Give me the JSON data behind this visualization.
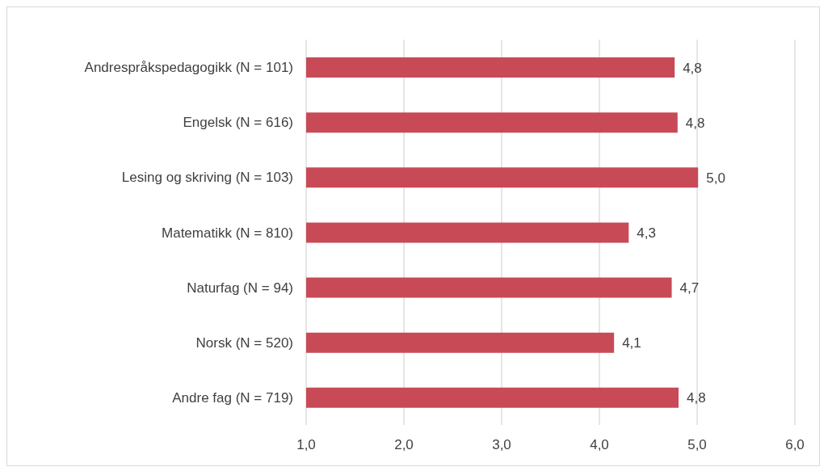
{
  "chart_data": {
    "type": "bar",
    "orientation": "horizontal",
    "categories": [
      "Andrespråkspedagogikk (N = 101)",
      "Engelsk (N = 616)",
      "Lesing og skriving (N = 103)",
      "Matematikk (N = 810)",
      "Naturfag (N = 94)",
      "Norsk (N = 520)",
      "Andre fag (N = 719)"
    ],
    "values": [
      4.77,
      4.8,
      5.01,
      4.3,
      4.74,
      4.15,
      4.81
    ],
    "value_labels": [
      "4,8",
      "4,8",
      "5,0",
      "4,3",
      "4,7",
      "4,1",
      "4,8"
    ],
    "color": "#c84a57",
    "xlim": [
      1,
      6
    ],
    "xticks": [
      {
        "value": 1,
        "label": "1,0"
      },
      {
        "value": 2,
        "label": "2,0"
      },
      {
        "value": 3,
        "label": "3,0"
      },
      {
        "value": 4,
        "label": "4,0"
      },
      {
        "value": 5,
        "label": "5,0"
      },
      {
        "value": 6,
        "label": "6,0"
      }
    ],
    "grid": "x"
  }
}
